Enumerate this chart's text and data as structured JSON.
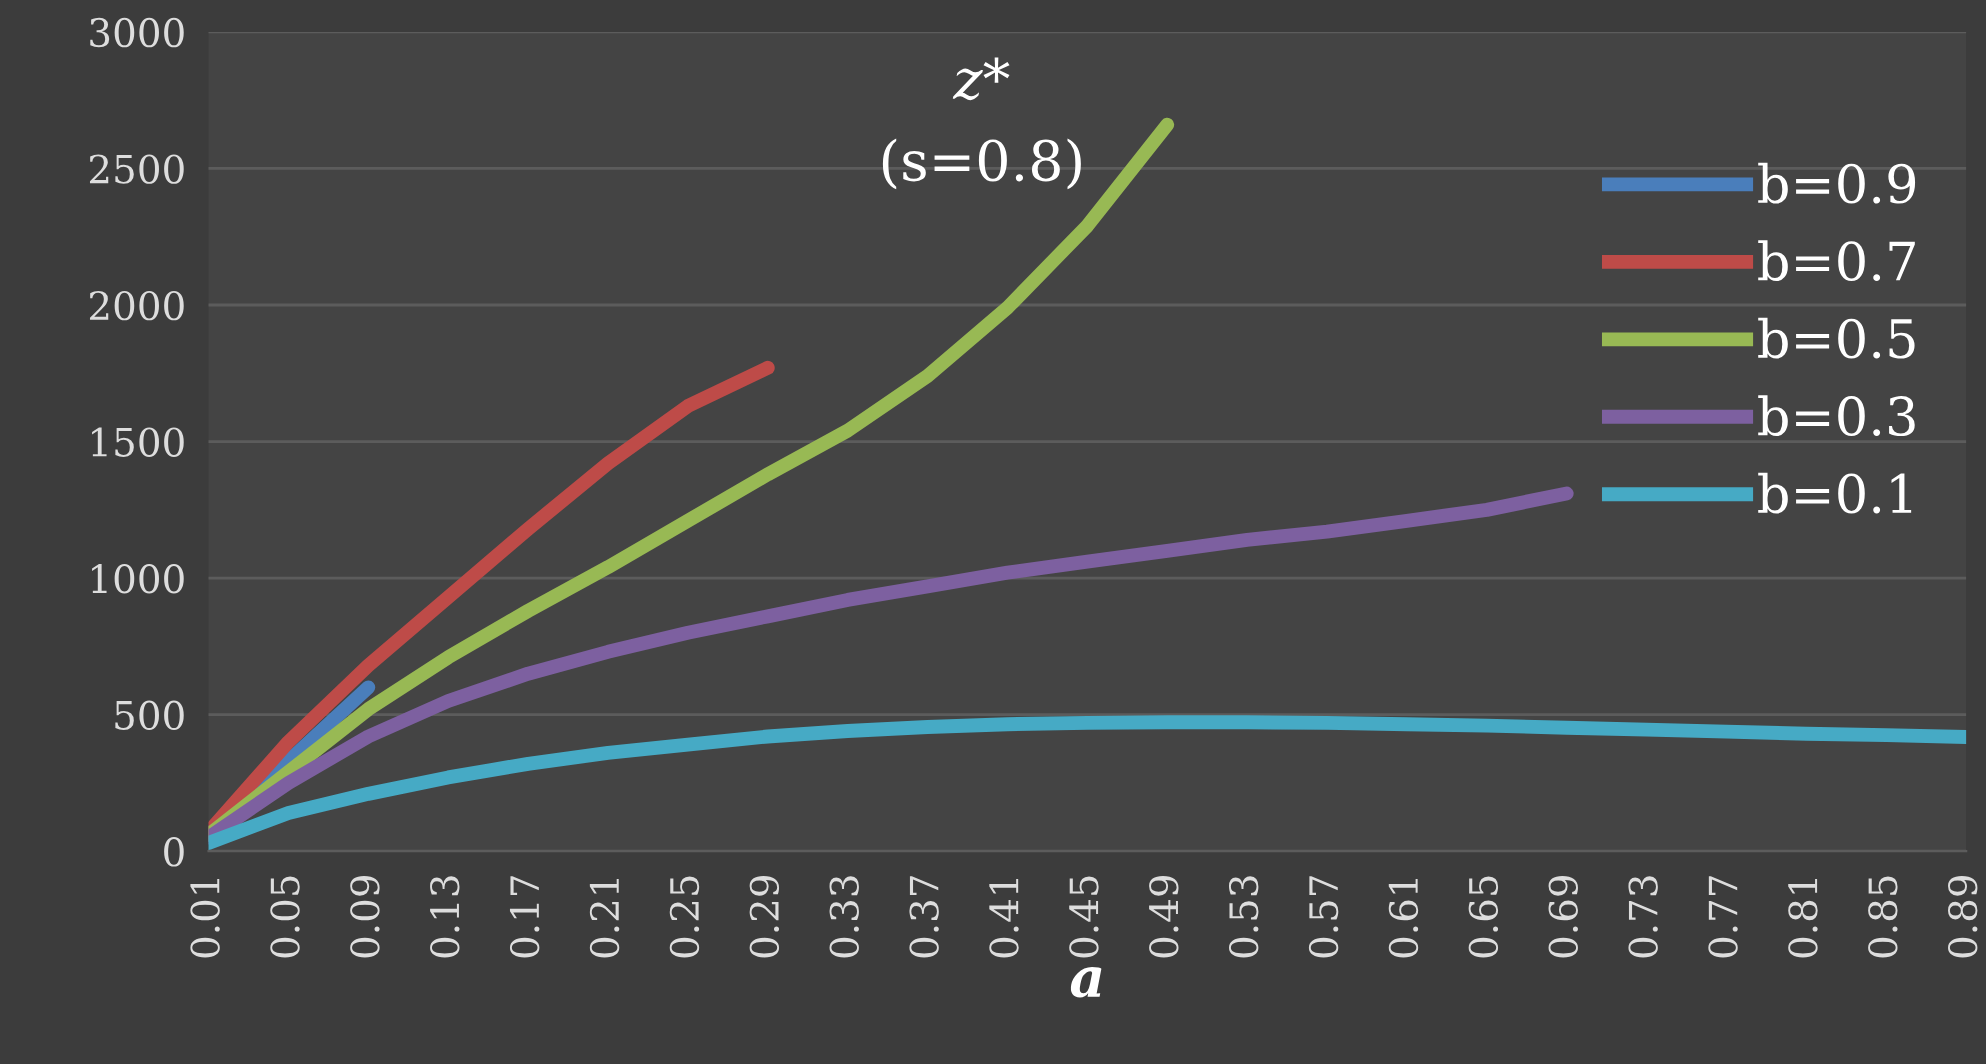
{
  "chart_data": {
    "type": "line",
    "title": "z*",
    "subtitle": "(s=0.8)",
    "xlabel": "a",
    "xlim": [
      0.01,
      0.89
    ],
    "xticks": [
      0.01,
      0.05,
      0.09,
      0.13,
      0.17,
      0.21,
      0.25,
      0.29,
      0.33,
      0.37,
      0.41,
      0.45,
      0.49,
      0.53,
      0.57,
      0.61,
      0.65,
      0.69,
      0.73,
      0.77,
      0.81,
      0.85,
      0.89
    ],
    "ylim": [
      0,
      3000
    ],
    "yticks": [
      0,
      500,
      1000,
      1500,
      2000,
      2500,
      3000
    ],
    "grid": "y",
    "legend": "right",
    "series": [
      {
        "name": "b=0.9",
        "color": "#4a7ebb",
        "x": [
          0.01,
          0.05,
          0.09
        ],
        "values": [
          60,
          330,
          600
        ]
      },
      {
        "name": "b=0.7",
        "color": "#be4b48",
        "x": [
          0.01,
          0.05,
          0.09,
          0.13,
          0.17,
          0.21,
          0.25,
          0.29
        ],
        "values": [
          70,
          400,
          680,
          930,
          1180,
          1420,
          1630,
          1770
        ]
      },
      {
        "name": "b=0.5",
        "color": "#98b954",
        "x": [
          0.01,
          0.05,
          0.09,
          0.13,
          0.17,
          0.21,
          0.25,
          0.29,
          0.33,
          0.37,
          0.41,
          0.45,
          0.49
        ],
        "values": [
          60,
          290,
          520,
          710,
          880,
          1040,
          1210,
          1380,
          1540,
          1740,
          1990,
          2290,
          2660
        ]
      },
      {
        "name": "b=0.3",
        "color": "#7d60a0",
        "x": [
          0.01,
          0.05,
          0.09,
          0.13,
          0.17,
          0.21,
          0.25,
          0.29,
          0.33,
          0.37,
          0.41,
          0.45,
          0.49,
          0.53,
          0.57,
          0.61,
          0.65,
          0.69
        ],
        "values": [
          50,
          250,
          420,
          550,
          650,
          730,
          800,
          860,
          920,
          970,
          1020,
          1060,
          1100,
          1140,
          1170,
          1210,
          1250,
          1310
        ]
      },
      {
        "name": "b=0.1",
        "color": "#46aac5",
        "x": [
          0.01,
          0.05,
          0.09,
          0.13,
          0.17,
          0.21,
          0.25,
          0.29,
          0.33,
          0.37,
          0.41,
          0.45,
          0.49,
          0.53,
          0.57,
          0.61,
          0.65,
          0.69,
          0.73,
          0.77,
          0.81,
          0.85,
          0.89
        ],
        "values": [
          30,
          140,
          210,
          270,
          320,
          360,
          390,
          420,
          440,
          455,
          465,
          470,
          472,
          472,
          470,
          465,
          460,
          452,
          445,
          438,
          430,
          425,
          418
        ]
      }
    ]
  }
}
